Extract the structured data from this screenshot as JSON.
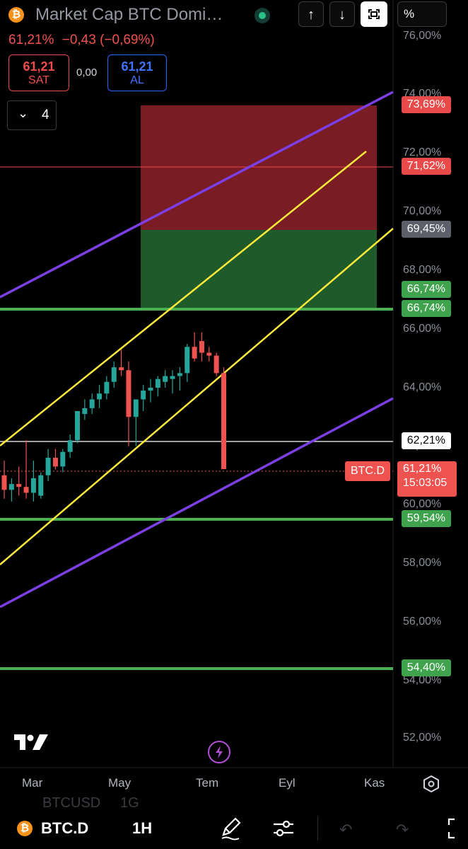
{
  "header": {
    "title": "Market Cap BTC Domi…",
    "price": "61,21%",
    "change": "−0,43 (−0,69%)",
    "sell_price": "61,21",
    "sell_label": "SAT",
    "spread": "0,00",
    "buy_price": "61,21",
    "buy_label": "AL",
    "collapse_count": "4",
    "scale_mode": "%"
  },
  "colors": {
    "up": "#26a69a",
    "down": "#ef5350",
    "channel_purple": "#7b3fe4",
    "channel_yellow": "#ffeb3b",
    "support_green": "#4caf50",
    "stop_zone": "#7a1c24",
    "target_zone": "#1f5a2a"
  },
  "price_axis": {
    "labels": [
      "76,00%",
      "74,00%",
      "72,00%",
      "70,00%",
      "68,00%",
      "66,00%",
      "64,00%",
      "62,00%",
      "60,00%",
      "58,00%",
      "56,00%",
      "54,00%",
      "52,00%"
    ]
  },
  "price_tags": {
    "tag_7369": "73,69%",
    "tag_7162": "71,62%",
    "tag_6945": "69,45%",
    "tag_6674_a": "66,74%",
    "tag_6674_b": "66,74%",
    "tag_6221": "62,21%",
    "symbol_tag": "BTC.D",
    "current_price": "61,21%",
    "countdown": "15:03:05",
    "tag_5954": "59,54%",
    "tag_5440": "54,40%"
  },
  "time_axis": {
    "labels": [
      "Mar",
      "May",
      "Tem",
      "Eyl",
      "Kas"
    ]
  },
  "chart_data": {
    "type": "candlestick",
    "symbol": "BTC.D",
    "y_unit": "%",
    "ylim": [
      51.0,
      77.0
    ],
    "x": [
      "Mar",
      "May",
      "Tem",
      "Eyl",
      "Kas"
    ],
    "candles": [
      {
        "o": 61.0,
        "h": 61.5,
        "l": 60.2,
        "c": 60.5
      },
      {
        "o": 60.5,
        "h": 60.9,
        "l": 60.1,
        "c": 60.7
      },
      {
        "o": 60.7,
        "h": 61.3,
        "l": 60.3,
        "c": 60.6
      },
      {
        "o": 60.6,
        "h": 62.2,
        "l": 60.2,
        "c": 60.4
      },
      {
        "o": 60.4,
        "h": 61.5,
        "l": 60.1,
        "c": 60.9
      },
      {
        "o": 60.3,
        "h": 61.1,
        "l": 60.2,
        "c": 61.0
      },
      {
        "o": 61.0,
        "h": 61.9,
        "l": 60.8,
        "c": 61.6
      },
      {
        "o": 61.6,
        "h": 61.9,
        "l": 61.2,
        "c": 61.3
      },
      {
        "o": 61.3,
        "h": 61.9,
        "l": 61.1,
        "c": 61.8
      },
      {
        "o": 61.8,
        "h": 62.4,
        "l": 61.6,
        "c": 62.2
      },
      {
        "o": 62.2,
        "h": 63.2,
        "l": 62.1,
        "c": 63.2
      },
      {
        "o": 63.1,
        "h": 63.6,
        "l": 62.9,
        "c": 63.3
      },
      {
        "o": 63.3,
        "h": 63.8,
        "l": 63.1,
        "c": 63.6
      },
      {
        "o": 63.6,
        "h": 64.1,
        "l": 63.3,
        "c": 63.8
      },
      {
        "o": 63.8,
        "h": 64.4,
        "l": 63.6,
        "c": 64.2
      },
      {
        "o": 64.2,
        "h": 64.9,
        "l": 64.0,
        "c": 64.7
      },
      {
        "o": 64.7,
        "h": 65.3,
        "l": 64.4,
        "c": 64.6
      },
      {
        "o": 64.6,
        "h": 64.9,
        "l": 62.0,
        "c": 63.0
      },
      {
        "o": 63.0,
        "h": 63.6,
        "l": 62.0,
        "c": 63.6
      },
      {
        "o": 63.6,
        "h": 64.1,
        "l": 63.2,
        "c": 63.9
      },
      {
        "o": 63.9,
        "h": 64.3,
        "l": 63.5,
        "c": 64.0
      },
      {
        "o": 64.0,
        "h": 64.4,
        "l": 63.7,
        "c": 64.3
      },
      {
        "o": 64.2,
        "h": 64.6,
        "l": 64.0,
        "c": 64.4
      },
      {
        "o": 64.3,
        "h": 64.6,
        "l": 63.8,
        "c": 64.4
      },
      {
        "o": 64.4,
        "h": 64.7,
        "l": 63.9,
        "c": 64.5
      },
      {
        "o": 64.5,
        "h": 65.5,
        "l": 64.2,
        "c": 65.4
      },
      {
        "o": 65.4,
        "h": 65.9,
        "l": 64.9,
        "c": 65.0
      },
      {
        "o": 65.6,
        "h": 65.9,
        "l": 64.9,
        "c": 65.2
      },
      {
        "o": 65.2,
        "h": 65.4,
        "l": 64.9,
        "c": 65.1
      },
      {
        "o": 65.1,
        "h": 65.2,
        "l": 64.4,
        "c": 64.5
      },
      {
        "o": 64.5,
        "h": 64.7,
        "l": 61.21,
        "c": 61.21
      }
    ],
    "horizontal_levels": [
      {
        "value": 71.62,
        "color": "#e84a4a"
      },
      {
        "value": 66.74,
        "color": "#4caf50"
      },
      {
        "value": 62.21,
        "color": "#ffffff"
      },
      {
        "value": 59.54,
        "color": "#4caf50"
      },
      {
        "value": 54.4,
        "color": "#4caf50"
      }
    ],
    "position_tool": {
      "entry": 69.45,
      "stop": 73.69,
      "target": 66.74
    }
  },
  "bottom": {
    "symbol": "BTC.D",
    "interval": "1H",
    "ghost_text": "BTCUSD     1G"
  }
}
